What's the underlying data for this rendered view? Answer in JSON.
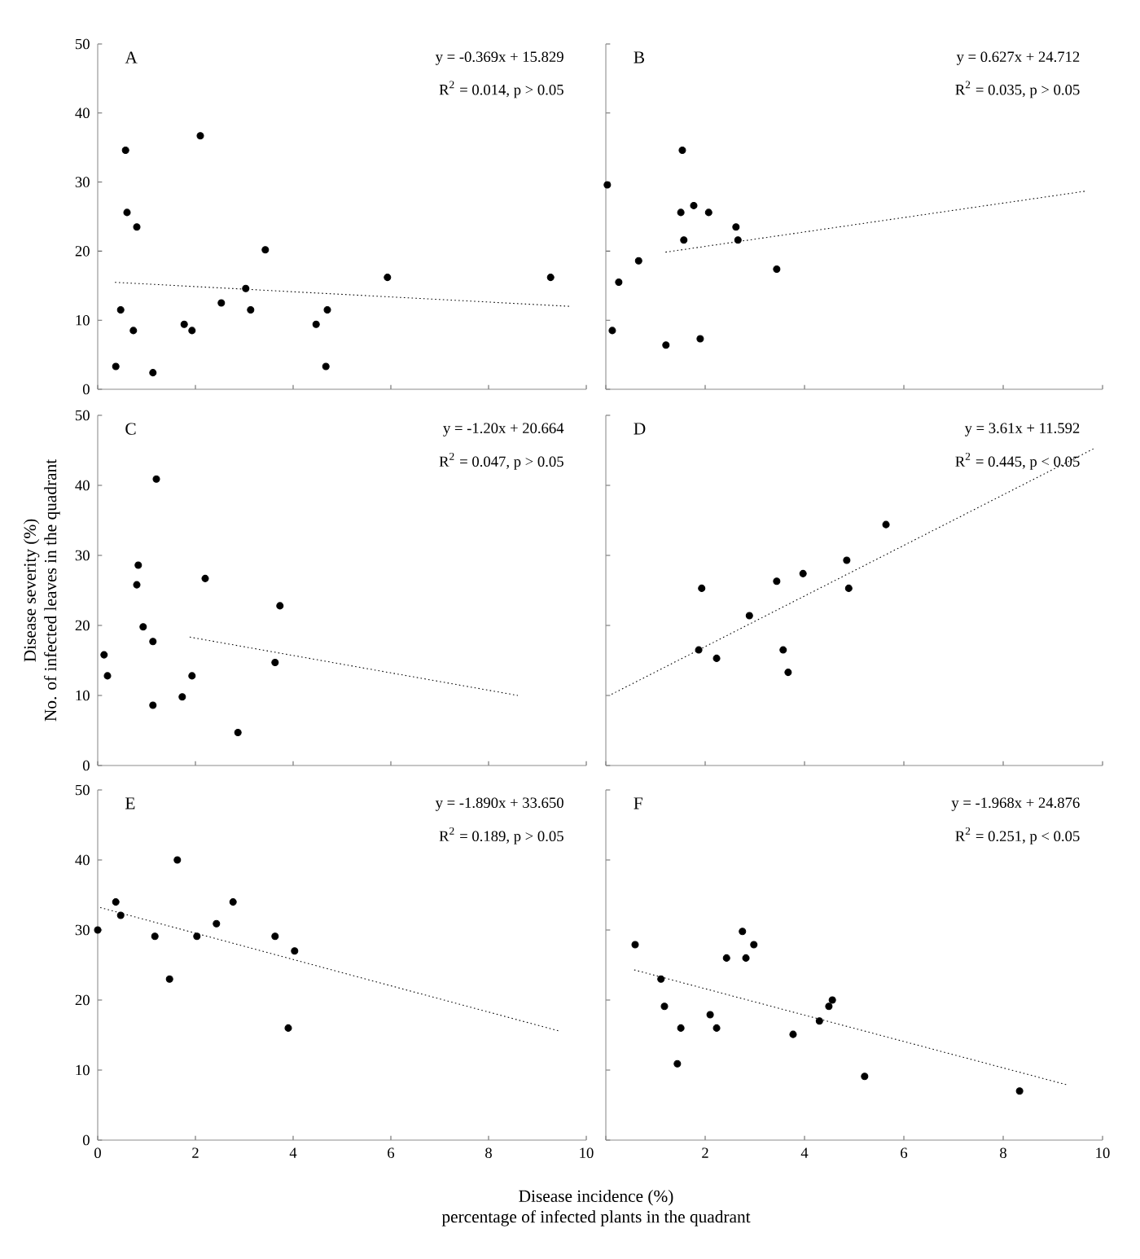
{
  "chart_data": [
    {
      "type": "scatter",
      "title": "A",
      "annotations": [
        "y = -0.369x + 15.829",
        "R$^{2}$ = 0.014, p > 0.05"
      ],
      "xlim": [
        0,
        10
      ],
      "xticks": [
        0,
        2,
        4,
        6,
        8,
        10
      ],
      "ylim": [
        0,
        50
      ],
      "yticks": [
        0,
        10,
        20,
        30,
        40,
        50
      ],
      "tick_labels": "y",
      "series": [
        {
          "type": "scatter",
          "marker": "circle",
          "color": "#000000",
          "x": [
            0.57,
            2.1,
            0.6,
            0.8,
            3.43,
            5.93,
            9.27,
            3.03,
            2.53,
            0.47,
            3.13,
            4.7,
            0.73,
            1.77,
            1.93,
            4.47,
            0.37,
            1.13,
            4.67
          ],
          "values": [
            34.6,
            36.7,
            25.6,
            23.5,
            20.2,
            16.2,
            16.2,
            14.6,
            12.5,
            11.5,
            11.5,
            11.5,
            8.5,
            9.4,
            8.5,
            9.4,
            3.3,
            2.4,
            3.3
          ]
        },
        {
          "type": "line",
          "marker": "none",
          "line_style": "dotted",
          "color": "#000000",
          "x": [
            0.3,
            9.67
          ],
          "values": [
            15.5,
            12.0
          ]
        }
      ]
    },
    {
      "type": "scatter",
      "title": "B",
      "annotations": [
        "y = 0.627x + 24.712",
        "R$^{2}$ = 0.035, p > 0.05"
      ],
      "xlim": [
        0,
        10
      ],
      "xticks": [
        0,
        2,
        4,
        6,
        8,
        10
      ],
      "ylim": [
        0,
        50
      ],
      "yticks": [
        0,
        10,
        20,
        30,
        40,
        50
      ],
      "tick_labels": false,
      "series": [
        {
          "type": "scatter",
          "marker": "circle",
          "color": "#000000",
          "x": [
            1.54,
            0.03,
            1.77,
            1.51,
            2.07,
            2.62,
            1.57,
            2.66,
            0.66,
            3.44,
            0.26,
            0.13,
            1.21,
            1.9
          ],
          "values": [
            34.6,
            29.6,
            26.6,
            25.6,
            25.6,
            23.5,
            21.6,
            21.6,
            18.6,
            17.4,
            15.5,
            8.5,
            6.4,
            7.3
          ]
        },
        {
          "type": "line",
          "marker": "none",
          "line_style": "dotted",
          "color": "#000000",
          "x": [
            1.15,
            9.67
          ],
          "values": [
            19.8,
            28.7
          ]
        }
      ]
    },
    {
      "type": "scatter",
      "title": "C",
      "ylabel": "Disease severity (%)\nNo. of infected leaves in the quadrant",
      "annotations": [
        "y = -1.20x + 20.664",
        "R$^{2}$ = 0.047, p > 0.05"
      ],
      "xlim": [
        0,
        10
      ],
      "xticks": [
        0,
        2,
        4,
        6,
        8,
        10
      ],
      "ylim": [
        0,
        50
      ],
      "yticks": [
        0,
        10,
        20,
        30,
        40,
        50
      ],
      "tick_labels": "y",
      "series": [
        {
          "type": "scatter",
          "marker": "circle",
          "color": "#000000",
          "x": [
            1.2,
            0.83,
            0.8,
            2.2,
            3.73,
            0.93,
            1.13,
            0.13,
            0.2,
            3.63,
            1.93,
            1.13,
            1.73,
            2.87
          ],
          "values": [
            40.9,
            28.6,
            25.8,
            26.7,
            22.8,
            19.8,
            17.7,
            15.8,
            12.8,
            14.7,
            12.8,
            8.6,
            9.8,
            4.7
          ]
        },
        {
          "type": "line",
          "marker": "none",
          "line_style": "dotted",
          "color": "#000000",
          "x": [
            1.83,
            8.6
          ],
          "values": [
            18.4,
            10.0
          ]
        }
      ]
    },
    {
      "type": "scatter",
      "title": "D",
      "annotations": [
        "y = 3.61x + 11.592",
        "R$^{2}$ = 0.445, p < 0.05"
      ],
      "xlim": [
        0,
        10
      ],
      "xticks": [
        0,
        2,
        4,
        6,
        8,
        10
      ],
      "ylim": [
        0,
        50
      ],
      "yticks": [
        0,
        10,
        20,
        30,
        40,
        50
      ],
      "tick_labels": false,
      "series": [
        {
          "type": "scatter",
          "marker": "circle",
          "color": "#000000",
          "x": [
            5.64,
            4.85,
            3.97,
            3.44,
            1.93,
            4.89,
            2.89,
            1.87,
            2.23,
            3.57,
            3.67
          ],
          "values": [
            34.4,
            29.3,
            27.4,
            26.3,
            25.3,
            25.3,
            21.4,
            16.5,
            15.3,
            16.5,
            13.3
          ]
        },
        {
          "type": "line",
          "marker": "none",
          "line_style": "dotted",
          "color": "#000000",
          "x": [
            0.07,
            9.84
          ],
          "values": [
            10.0,
            45.3
          ]
        }
      ]
    },
    {
      "type": "scatter",
      "title": "E",
      "xlabel": "Disease incidence (%)\npercentage of infected plants in the quadrant",
      "annotations": [
        "y = -1.890x + 33.650",
        "R$^{2}$ = 0.189, p > 0.05"
      ],
      "xlim": [
        0,
        10
      ],
      "xticks": [
        0,
        2,
        4,
        6,
        8,
        10
      ],
      "ylim": [
        0,
        50
      ],
      "yticks": [
        0,
        10,
        20,
        30,
        40,
        50
      ],
      "series": [
        {
          "type": "scatter",
          "marker": "circle",
          "color": "#000000",
          "x": [
            1.63,
            0.37,
            2.77,
            0.47,
            2.43,
            0.0,
            1.17,
            2.03,
            3.63,
            4.03,
            1.47,
            3.9
          ],
          "values": [
            40.0,
            34.0,
            34.0,
            32.1,
            30.9,
            30.0,
            29.1,
            29.1,
            29.1,
            27.0,
            23.0,
            16.0
          ]
        },
        {
          "type": "line",
          "marker": "none",
          "line_style": "dotted",
          "color": "#000000",
          "x": [
            0.0,
            9.43
          ],
          "values": [
            33.3,
            15.6
          ]
        }
      ]
    },
    {
      "type": "scatter",
      "title": "F",
      "annotations": [
        "y = -1.968x + 24.876",
        "R$^{2}$ = 0.251, p < 0.05"
      ],
      "xlim": [
        0,
        10
      ],
      "xticks": [
        {
          "value": 0,
          "label": null
        },
        2,
        4,
        6,
        8,
        10
      ],
      "ylim": [
        0,
        50
      ],
      "yticks": [
        0,
        10,
        20,
        30,
        40,
        50
      ],
      "tick_labels": "x",
      "series": [
        {
          "type": "scatter",
          "marker": "circle",
          "color": "#000000",
          "x": [
            0.59,
            2.75,
            2.98,
            2.43,
            2.82,
            1.11,
            4.56,
            4.49,
            1.18,
            2.1,
            4.3,
            1.51,
            2.23,
            3.77,
            1.44,
            5.21,
            8.33
          ],
          "values": [
            27.9,
            29.8,
            27.9,
            26.0,
            26.0,
            23.0,
            20.0,
            19.1,
            19.1,
            17.9,
            17.0,
            16.0,
            16.0,
            15.1,
            10.9,
            9.1,
            7.0
          ]
        },
        {
          "type": "line",
          "marker": "none",
          "line_style": "dotted",
          "color": "#000000",
          "x": [
            0.52,
            9.28
          ],
          "values": [
            24.4,
            7.9
          ]
        }
      ]
    }
  ]
}
